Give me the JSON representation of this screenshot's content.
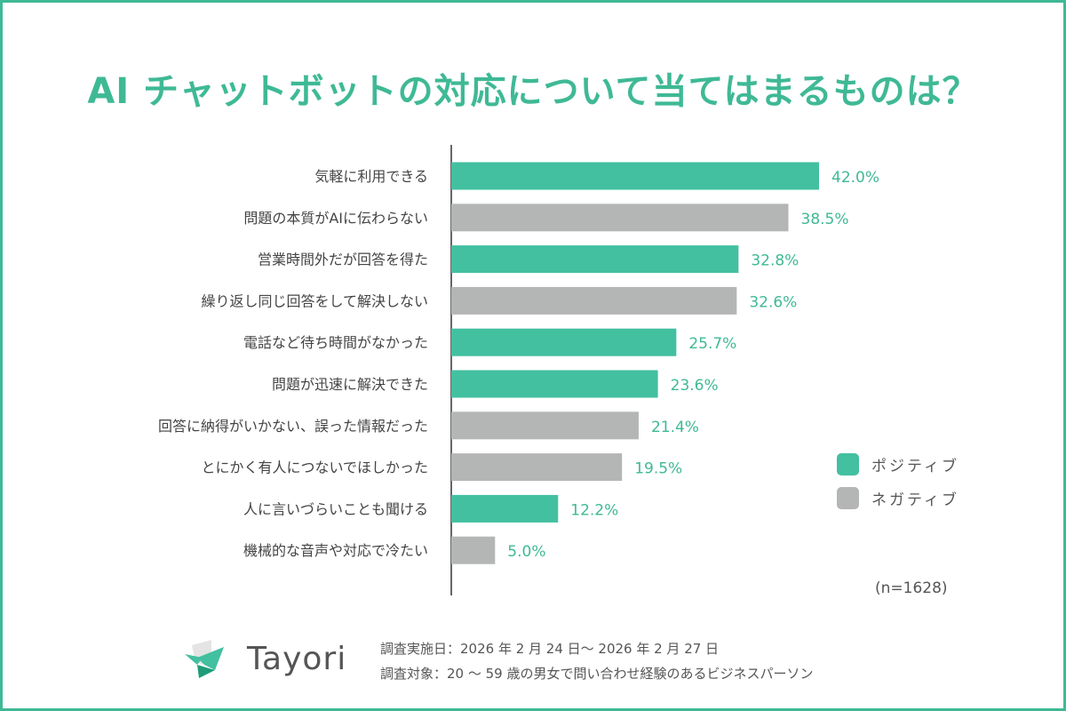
{
  "chart_data": {
    "type": "bar",
    "orientation": "horizontal",
    "title": "AI チャットボットの対応について当てはまるものは？",
    "categories": [
      "気軽に利用できる",
      "問題の本質がAIに伝わらない",
      "営業時間外だが回答を得た",
      "繰り返し同じ回答をして解決しない",
      "電話など待ち時間がなかった",
      "問題が迅速に解決できた",
      "回答に納得がいかない、誤った情報だった",
      "とにかく有人につないでほしかった",
      "人に言いづらいことも聞ける",
      "機械的な音声や対応で冷たい"
    ],
    "values": [
      42.0,
      38.5,
      32.8,
      32.6,
      25.7,
      23.6,
      21.4,
      19.5,
      12.2,
      5.0
    ],
    "value_labels": [
      "42.0%",
      "38.5%",
      "32.8%",
      "32.6%",
      "25.7%",
      "23.6%",
      "21.4%",
      "19.5%",
      "12.2%",
      "5.0%"
    ],
    "groups": [
      "positive",
      "negative",
      "positive",
      "negative",
      "positive",
      "positive",
      "negative",
      "negative",
      "positive",
      "negative"
    ],
    "legend": [
      {
        "key": "positive",
        "name": "ポジティブ",
        "color": "#42c0a0"
      },
      {
        "key": "negative",
        "name": "ネガティブ",
        "color": "#b4b6b5"
      }
    ],
    "legend_position": "right",
    "xlim": [
      0,
      42
    ],
    "grid": false,
    "sample_note": "(n=1628)"
  },
  "footer": {
    "brand": "Tayori",
    "survey_date": "調査実施日：2026 年 2 月 24 日～ 2026 年 2 月 27 日",
    "survey_target": "調査対象：20 ～ 59 歳の男女で問い合わせ経験のあるビジネスパーソン"
  },
  "colors": {
    "accent": "#3fb995",
    "positive": "#42c0a0",
    "negative": "#b4b6b5"
  }
}
